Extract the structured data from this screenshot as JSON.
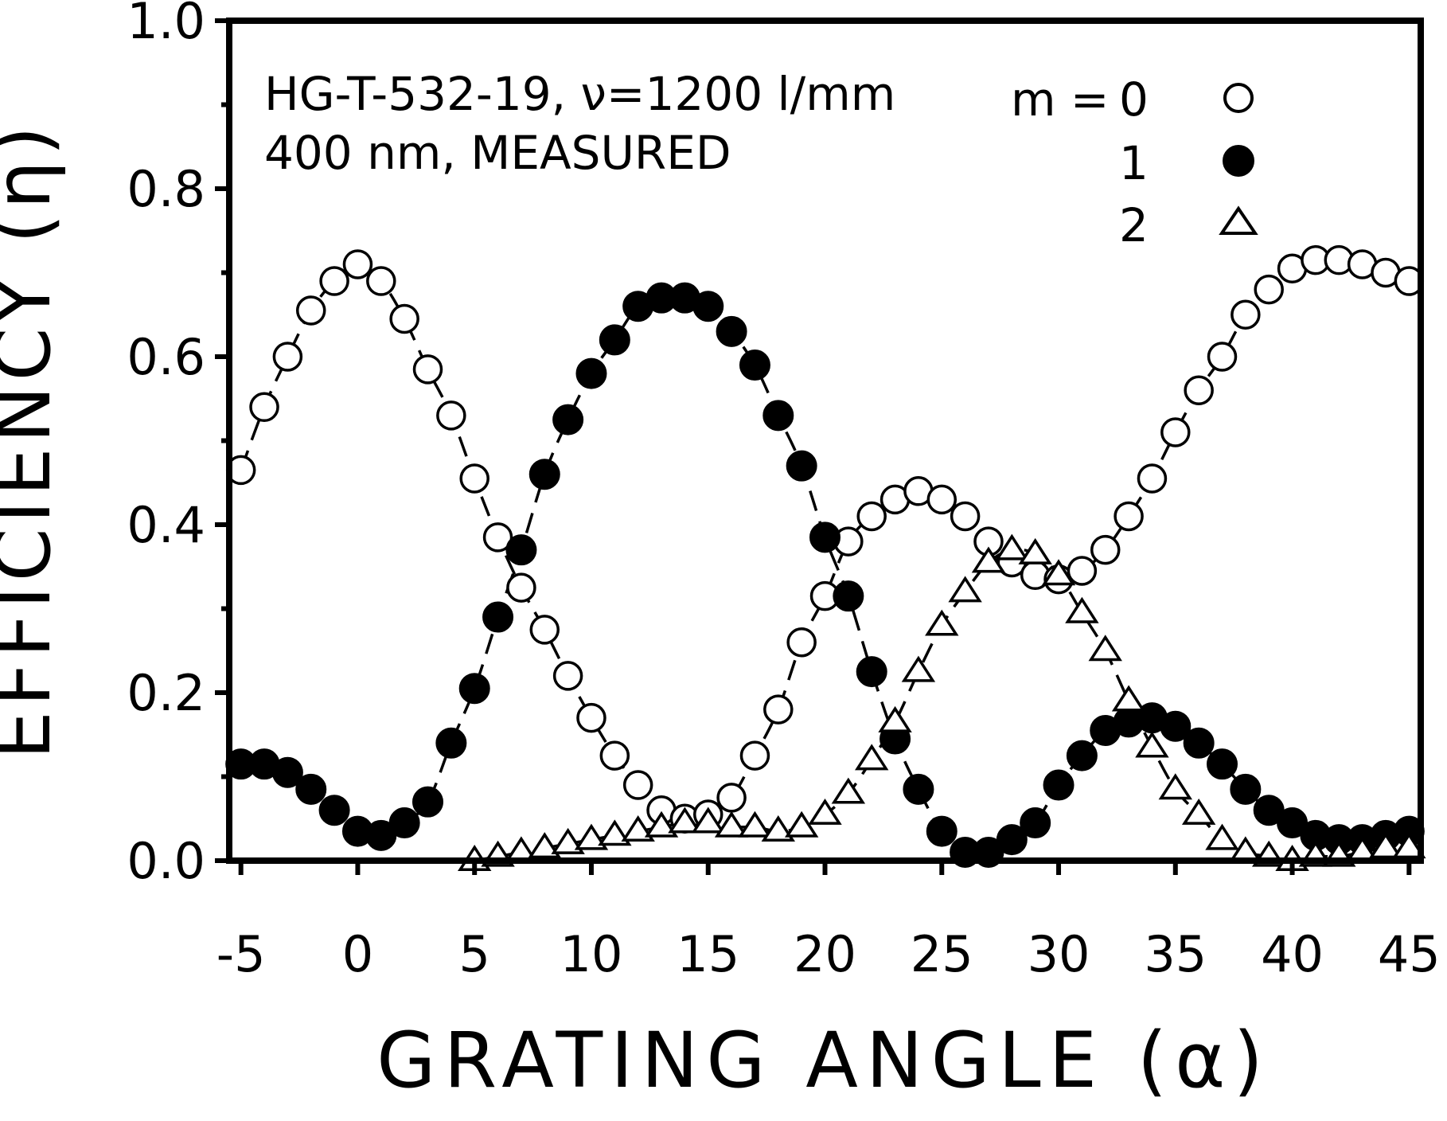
{
  "chart_data": {
    "type": "scatter",
    "xlabel": "GRATING ANGLE (α)",
    "ylabel": "EFFICIENCY (η)",
    "xlim": [
      -5.5,
      45.5
    ],
    "ylim": [
      0.0,
      1.0
    ],
    "xticks": [
      -5,
      0,
      5,
      10,
      15,
      20,
      25,
      30,
      35,
      40,
      45
    ],
    "xtick_labels": [
      "-5",
      "0",
      "5",
      "10",
      "15",
      "20",
      "25",
      "30",
      "35",
      "40",
      "45"
    ],
    "yticks": [
      0.0,
      0.2,
      0.4,
      0.6,
      0.8,
      1.0
    ],
    "ytick_labels": [
      "0.0",
      "0.2",
      "0.4",
      "0.6",
      "0.8",
      "1.0"
    ],
    "annotation": [
      "HG-T-532-19, ν=1200 l/mm",
      "400 nm, MEASURED"
    ],
    "legend": {
      "placement": "top-right",
      "title": "m =",
      "entries": [
        {
          "label": "0",
          "marker": "open-circle"
        },
        {
          "label": "1",
          "marker": "filled-circle"
        },
        {
          "label": "2",
          "marker": "open-triangle"
        }
      ]
    },
    "series": [
      {
        "marker": "open-circle",
        "x": [
          -5,
          -4,
          -3,
          -2,
          -1,
          0,
          1,
          2,
          3,
          4,
          5,
          6,
          7,
          8,
          9,
          10,
          11,
          12,
          13,
          14,
          15,
          16,
          17,
          18,
          19,
          20,
          21,
          22,
          23,
          24,
          25,
          26,
          27,
          28,
          29,
          30,
          31,
          32,
          33,
          34,
          35,
          36,
          37,
          38,
          39,
          40,
          41,
          42,
          43,
          44,
          45
        ],
        "y": [
          0.465,
          0.54,
          0.6,
          0.655,
          0.69,
          0.71,
          0.69,
          0.645,
          0.585,
          0.53,
          0.455,
          0.385,
          0.325,
          0.275,
          0.22,
          0.17,
          0.125,
          0.09,
          0.06,
          0.05,
          0.055,
          0.075,
          0.125,
          0.18,
          0.26,
          0.315,
          0.38,
          0.41,
          0.43,
          0.44,
          0.43,
          0.41,
          0.38,
          0.355,
          0.34,
          0.335,
          0.345,
          0.37,
          0.41,
          0.455,
          0.51,
          0.56,
          0.6,
          0.65,
          0.68,
          0.705,
          0.715,
          0.715,
          0.71,
          0.7,
          0.69
        ]
      },
      {
        "marker": "filled-circle",
        "x": [
          -5,
          -4,
          -3,
          -2,
          -1,
          0,
          1,
          2,
          3,
          4,
          5,
          6,
          7,
          8,
          9,
          10,
          11,
          12,
          13,
          14,
          15,
          16,
          17,
          18,
          19,
          20,
          21,
          22,
          23,
          24,
          25,
          26,
          27,
          28,
          29,
          30,
          31,
          32,
          33,
          34,
          35,
          36,
          37,
          38,
          39,
          40,
          41,
          42,
          43,
          44,
          45
        ],
        "y": [
          0.115,
          0.115,
          0.105,
          0.085,
          0.06,
          0.035,
          0.03,
          0.045,
          0.07,
          0.14,
          0.205,
          0.29,
          0.37,
          0.46,
          0.525,
          0.58,
          0.62,
          0.66,
          0.67,
          0.67,
          0.66,
          0.63,
          0.59,
          0.53,
          0.47,
          0.385,
          0.315,
          0.225,
          0.145,
          0.085,
          0.035,
          0.01,
          0.01,
          0.025,
          0.045,
          0.09,
          0.125,
          0.155,
          0.165,
          0.17,
          0.16,
          0.14,
          0.115,
          0.085,
          0.06,
          0.045,
          0.03,
          0.025,
          0.025,
          0.03,
          0.035
        ]
      },
      {
        "marker": "open-triangle",
        "x": [
          5,
          6,
          7,
          8,
          9,
          10,
          11,
          12,
          13,
          14,
          15,
          16,
          17,
          18,
          19,
          20,
          21,
          22,
          23,
          24,
          25,
          26,
          27,
          28,
          29,
          30,
          31,
          32,
          33,
          34,
          35,
          36,
          37,
          38,
          39,
          40,
          41,
          42,
          43,
          44,
          45
        ],
        "y": [
          0.0,
          0.005,
          0.01,
          0.015,
          0.02,
          0.025,
          0.03,
          0.035,
          0.04,
          0.045,
          0.045,
          0.04,
          0.04,
          0.035,
          0.04,
          0.055,
          0.08,
          0.12,
          0.165,
          0.225,
          0.28,
          0.32,
          0.355,
          0.37,
          0.365,
          0.34,
          0.295,
          0.25,
          0.19,
          0.135,
          0.085,
          0.055,
          0.025,
          0.01,
          0.005,
          0.0,
          0.005,
          0.005,
          0.01,
          0.015,
          0.015
        ]
      }
    ]
  }
}
